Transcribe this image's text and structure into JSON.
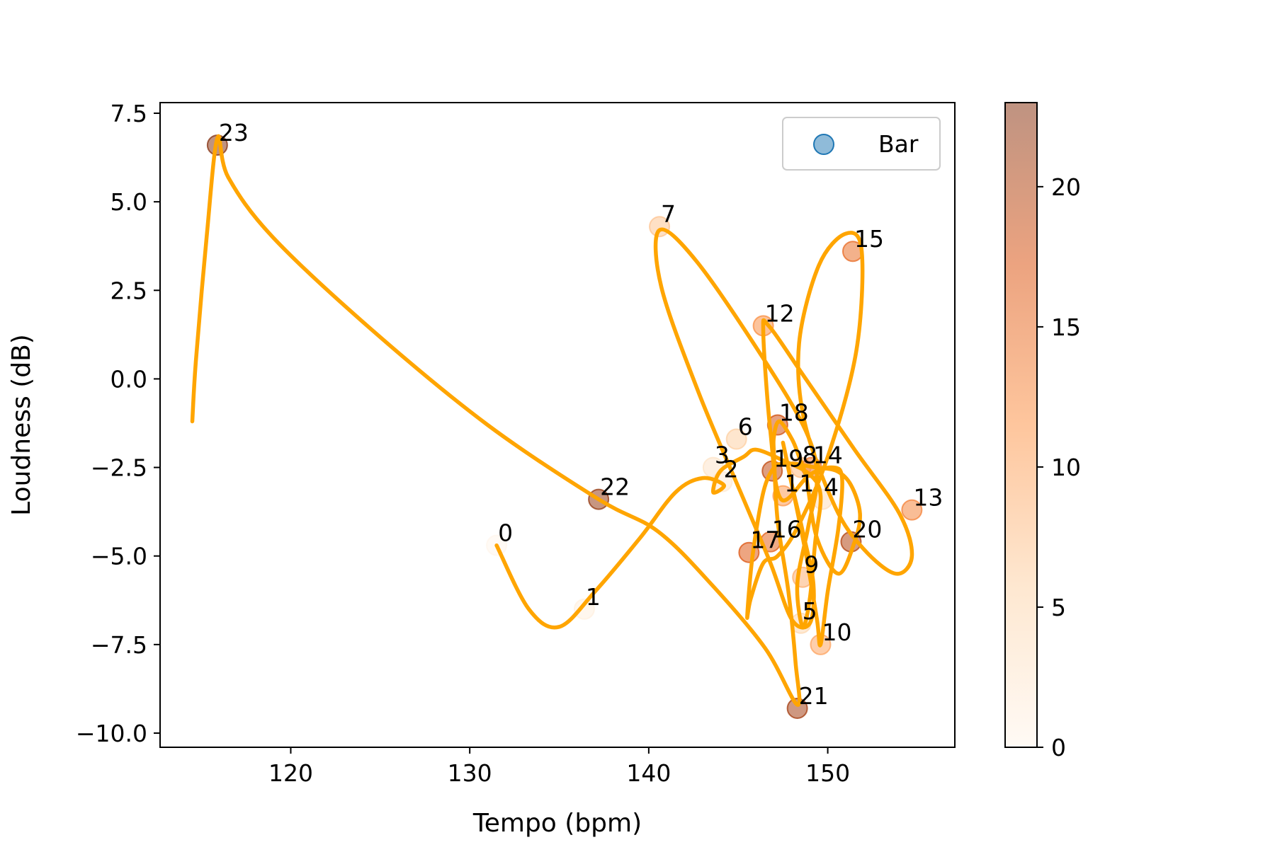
{
  "chart_data": {
    "type": "scatter",
    "title": "",
    "xlabel": "Tempo (bpm)",
    "ylabel": "Loudness (dB)",
    "xlim": [
      112.7,
      157.1
    ],
    "ylim": [
      -10.4,
      7.8
    ],
    "xticks": [
      120,
      130,
      140,
      150
    ],
    "xtick_labels": [
      "120",
      "130",
      "140",
      "150"
    ],
    "yticks": [
      7.5,
      5.0,
      2.5,
      0.0,
      -2.5,
      -5.0,
      -7.5,
      -10.0
    ],
    "ytick_labels": [
      "7.5",
      "5.0",
      "2.5",
      "0.0",
      "−2.5",
      "−5.0",
      "−7.5",
      "−10.0"
    ],
    "legend": {
      "label": "Bar",
      "position": "top-right",
      "marker_color": "#1f77b4"
    },
    "grid": false,
    "colorbar": {
      "range": [
        0,
        23
      ],
      "ticks": [
        0,
        5,
        10,
        15,
        20
      ],
      "tick_labels": [
        "0",
        "5",
        "10",
        "15",
        "20"
      ],
      "colormap": "Oranges-to-brown",
      "colors": [
        "#fff5eb",
        "#fdd0a2",
        "#fd8d3c",
        "#d94801",
        "#7f2704"
      ]
    },
    "line_color": "#ffa500",
    "points": [
      {
        "label": "0",
        "x": 131.5,
        "y": -4.7
      },
      {
        "label": "1",
        "x": 136.4,
        "y": -6.5
      },
      {
        "label": "2",
        "x": 144.1,
        "y": -2.9
      },
      {
        "label": "3",
        "x": 143.6,
        "y": -2.5
      },
      {
        "label": "4",
        "x": 149.7,
        "y": -3.4
      },
      {
        "label": "5",
        "x": 148.5,
        "y": -6.9
      },
      {
        "label": "6",
        "x": 144.9,
        "y": -1.7
      },
      {
        "label": "7",
        "x": 140.6,
        "y": 4.3
      },
      {
        "label": "8",
        "x": 148.5,
        "y": -2.5
      },
      {
        "label": "9",
        "x": 148.6,
        "y": -5.6
      },
      {
        "label": "10",
        "x": 149.6,
        "y": -7.5
      },
      {
        "label": "11",
        "x": 147.5,
        "y": -3.3
      },
      {
        "label": "12",
        "x": 146.4,
        "y": 1.5
      },
      {
        "label": "13",
        "x": 154.7,
        "y": -3.7
      },
      {
        "label": "14",
        "x": 149.1,
        "y": -2.5
      },
      {
        "label": "15",
        "x": 151.4,
        "y": 3.6
      },
      {
        "label": "16",
        "x": 146.8,
        "y": -4.6
      },
      {
        "label": "17",
        "x": 145.6,
        "y": -4.9
      },
      {
        "label": "18",
        "x": 147.2,
        "y": -1.3
      },
      {
        "label": "19",
        "x": 146.9,
        "y": -2.6
      },
      {
        "label": "20",
        "x": 151.3,
        "y": -4.6
      },
      {
        "label": "21",
        "x": 148.3,
        "y": -9.3
      },
      {
        "label": "22",
        "x": 137.2,
        "y": -3.4
      },
      {
        "label": "23",
        "x": 115.9,
        "y": 6.6
      }
    ],
    "curve": [
      [
        131.5,
        -4.7
      ],
      [
        133.3,
        -6.5
      ],
      [
        135.0,
        -7.0
      ],
      [
        137.0,
        -6.0
      ],
      [
        139.5,
        -4.5
      ],
      [
        141.5,
        -3.2
      ],
      [
        143.0,
        -2.8
      ],
      [
        144.2,
        -3.0
      ],
      [
        143.6,
        -3.2
      ],
      [
        144.0,
        -2.6
      ],
      [
        145.3,
        -2.2
      ],
      [
        146.0,
        -2.0
      ],
      [
        147.5,
        -2.3
      ],
      [
        149.0,
        -2.7
      ],
      [
        149.6,
        -3.3
      ],
      [
        149.3,
        -4.6
      ],
      [
        149.0,
        -6.2
      ],
      [
        148.6,
        -7.0
      ],
      [
        148.3,
        -5.8
      ],
      [
        148.9,
        -4.2
      ],
      [
        149.4,
        -2.8
      ],
      [
        148.8,
        -1.5
      ],
      [
        146.5,
        0.5
      ],
      [
        142.7,
        3.3
      ],
      [
        140.6,
        4.2
      ],
      [
        140.7,
        2.6
      ],
      [
        142.8,
        -0.4
      ],
      [
        145.3,
        -3.4
      ],
      [
        146.8,
        -5.2
      ],
      [
        148.0,
        -6.8
      ],
      [
        149.0,
        -6.9
      ],
      [
        149.2,
        -5.8
      ],
      [
        148.6,
        -4.3
      ],
      [
        148.0,
        -3.0
      ],
      [
        147.5,
        -1.8
      ],
      [
        148.0,
        -3.0
      ],
      [
        148.8,
        -5.0
      ],
      [
        149.4,
        -6.8
      ],
      [
        149.6,
        -7.5
      ],
      [
        150.0,
        -6.0
      ],
      [
        150.6,
        -4.2
      ],
      [
        150.8,
        -2.8
      ],
      [
        150.3,
        -2.5
      ],
      [
        149.0,
        -2.7
      ],
      [
        147.4,
        -3.4
      ],
      [
        146.8,
        -1.5
      ],
      [
        146.4,
        1.3
      ],
      [
        146.7,
        1.5
      ],
      [
        148.5,
        0.2
      ],
      [
        151.5,
        -2.0
      ],
      [
        154.0,
        -3.8
      ],
      [
        154.7,
        -5.0
      ],
      [
        153.8,
        -5.5
      ],
      [
        152.0,
        -4.8
      ],
      [
        150.4,
        -3.6
      ],
      [
        148.7,
        -1.2
      ],
      [
        148.4,
        1.0
      ],
      [
        149.5,
        3.2
      ],
      [
        151.0,
        4.1
      ],
      [
        151.9,
        3.6
      ],
      [
        151.6,
        0.8
      ],
      [
        150.0,
        -2.2
      ],
      [
        148.3,
        -4.2
      ],
      [
        147.2,
        -5.0
      ],
      [
        146.4,
        -5.2
      ],
      [
        145.7,
        -6.2
      ],
      [
        145.5,
        -6.7
      ],
      [
        145.8,
        -5.0
      ],
      [
        146.4,
        -3.2
      ],
      [
        147.0,
        -2.5
      ],
      [
        147.5,
        -2.4
      ],
      [
        148.2,
        -2.4
      ],
      [
        149.3,
        -2.5
      ],
      [
        150.5,
        -2.6
      ],
      [
        151.3,
        -3.0
      ],
      [
        151.8,
        -3.8
      ],
      [
        151.5,
        -4.6
      ],
      [
        150.6,
        -5.5
      ],
      [
        149.4,
        -4.5
      ],
      [
        148.8,
        -2.8
      ],
      [
        148.4,
        -2.2
      ],
      [
        148.0,
        -1.7
      ],
      [
        147.3,
        -1.2
      ],
      [
        147.0,
        -1.6
      ],
      [
        147.0,
        -2.2
      ],
      [
        147.2,
        -4.0
      ],
      [
        147.8,
        -6.0
      ],
      [
        148.2,
        -8.0
      ],
      [
        148.3,
        -9.2
      ],
      [
        146.5,
        -7.6
      ],
      [
        143.5,
        -5.8
      ],
      [
        140.5,
        -4.3
      ],
      [
        137.2,
        -3.4
      ],
      [
        131.0,
        -1.3
      ],
      [
        124.5,
        1.4
      ],
      [
        119.0,
        4.0
      ],
      [
        116.5,
        5.7
      ],
      [
        115.9,
        6.8
      ],
      [
        115.3,
        4.0
      ],
      [
        114.7,
        0.5
      ],
      [
        114.5,
        -1.2
      ]
    ]
  }
}
